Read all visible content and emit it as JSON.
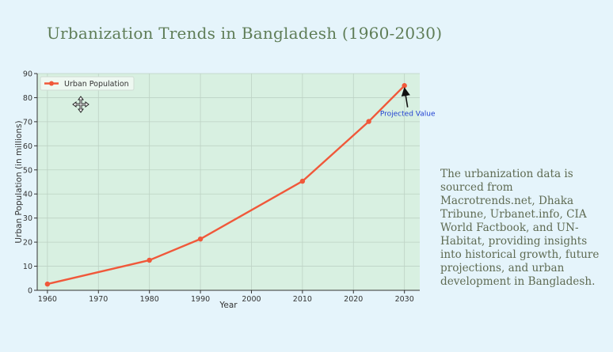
{
  "page": {
    "title": "Urbanization Trends in Bangladesh (1960-2030)",
    "side_note": "The urbanization data is sourced from Macrotrends.net, Dhaka Tribune, Urbanet.info, CIA World Factbook, and UN-Habitat, providing insights into historical growth, future projections, and urban development in Bangladesh."
  },
  "colors": {
    "line": "#f0583a",
    "plot_bg": "#d8f0e1",
    "annotation": "#1f3fd1",
    "grid": "#bdd2c4"
  },
  "icons": {
    "cursor": "move-cursor-icon"
  },
  "chart_data": {
    "type": "line",
    "title": "",
    "xlabel": "Year",
    "ylabel": "Urban Population (in millions)",
    "xlim": [
      1958,
      2033
    ],
    "ylim": [
      0,
      90
    ],
    "xticks": [
      1960,
      1970,
      1980,
      1990,
      2000,
      2010,
      2020,
      2030
    ],
    "yticks": [
      0,
      10,
      20,
      30,
      40,
      50,
      60,
      70,
      80,
      90
    ],
    "grid": true,
    "legend": "top-left",
    "series": [
      {
        "name": "Urban Population",
        "x": [
          1960,
          1980,
          1990,
          2010,
          2023,
          2030
        ],
        "y": [
          2.6,
          12.5,
          21.3,
          45.3,
          70.1,
          85.0
        ]
      }
    ],
    "annotation": {
      "text": "Projected Value",
      "x": 2030,
      "y": 85.0,
      "text_x": 2030,
      "text_y": 75
    }
  }
}
